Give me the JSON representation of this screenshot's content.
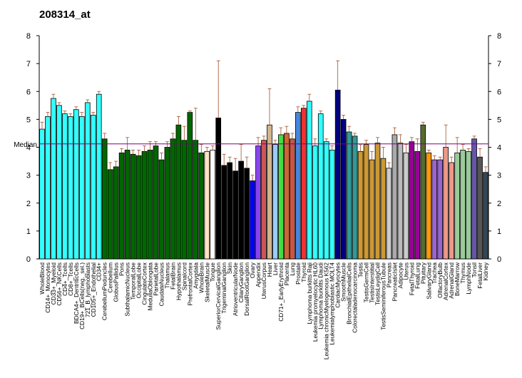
{
  "chart_data": {
    "type": "bar",
    "title": "208314_at",
    "median": 4.12,
    "median_label": "Median",
    "median_color": "#800080",
    "ylim": [
      0,
      8
    ],
    "yticks": [
      0,
      1,
      2,
      3,
      4,
      5,
      6,
      7,
      8
    ],
    "categories": [
      "WholeBlood",
      "CD14+_Monocytes",
      "CD33+_Myeloid",
      "CD56+_NKCells",
      "CD4+_Tcells",
      "CD8+_Tcells",
      "BDCA4+_DentriticCells",
      "CD19+_BCells(neg._sel.)",
      "721_B_lymphoblasts",
      "CD105+_Endothelial",
      "CD34+",
      "CerebellumPeduncles",
      "Cerebellum",
      "GlobusPallidus",
      "Pons",
      "SubthalamicNucleus",
      "TemporalLobe",
      "OccipitalLobe",
      "CingulateCortex",
      "MedullaOblongata",
      "ParietalLobe",
      "CaudateNucleus",
      "Thalamus",
      "FetalBrain",
      "Hypothalamus",
      "Spinalcord",
      "PrefrontalCortex",
      "Amygdala",
      "WholeBrain",
      "SkeletalMuscle",
      "Tongue",
      "SuperiorCervicalGanglion",
      "TrigeminalGanglion",
      "Skin",
      "AtrioventricularNode",
      "CiliaryGanglion",
      "DorsalRootGanglion",
      "Ovary",
      "Appendix",
      "UterusCorpus",
      "Heart",
      "Liver",
      "CD71+_EarlyErythroid",
      "Placenta",
      "Lung",
      "Prostate",
      "Thyroid",
      "Lymphoma burkitts Raji",
      "Leukemia promyelocytic HL60",
      "Lymphoma burkitts Daudi",
      "Leukemia chronicMyelogenous K562",
      "Leukemialymphoblastic MOLT4",
      "CardiacMyocytes",
      "SmoothMuscle",
      "BronchialEpithelialCells",
      "Colorectaladenocarcinoma",
      "Testis",
      "TestisGermCell",
      "TestisInterstitial",
      "TestisLeydigCell",
      "TestisSeminiferousTubule",
      "Pancreas",
      "PancreaticIslet",
      "Adipocyte",
      "Uterus",
      "FetalThyroid",
      "FetalLung",
      "Pituitary",
      "SalivaryGland",
      "Trachea",
      "OlfactoryBulb",
      "AdrenalCortex",
      "AdrenalGland",
      "BoneMarrow",
      "Thymus",
      "LymphNode",
      "Tonsil",
      "FetalLiver",
      "Kidney"
    ],
    "values": [
      4.65,
      5.1,
      5.75,
      5.5,
      5.2,
      5.1,
      5.35,
      5.1,
      5.6,
      5.15,
      5.9,
      4.3,
      3.2,
      3.3,
      3.8,
      3.9,
      3.75,
      3.7,
      3.85,
      3.9,
      4.05,
      3.55,
      4.0,
      4.3,
      4.8,
      4.25,
      5.25,
      4.25,
      3.8,
      3.85,
      3.9,
      5.05,
      3.35,
      3.45,
      3.15,
      3.5,
      3.25,
      2.8,
      4.05,
      4.25,
      4.8,
      4.1,
      4.45,
      4.5,
      4.3,
      5.25,
      5.4,
      5.65,
      4.05,
      5.2,
      4.2,
      3.9,
      6.05,
      5.0,
      4.55,
      4.4,
      3.85,
      4.1,
      3.55,
      4.15,
      3.6,
      3.25,
      4.45,
      4.15,
      3.8,
      4.2,
      3.85,
      4.8,
      3.8,
      3.55,
      3.55,
      4.0,
      3.45,
      3.8,
      3.9,
      3.85,
      4.3,
      3.65,
      3.1
    ],
    "errors": [
      0.25,
      0.15,
      0.15,
      0.1,
      0.1,
      0.1,
      0.1,
      0.15,
      0.1,
      0.1,
      0.1,
      0.2,
      0.25,
      0.2,
      0.15,
      0.45,
      0.15,
      0.2,
      0.2,
      0.3,
      0.15,
      0.25,
      0.2,
      0.2,
      0.3,
      0.5,
      0.05,
      1.15,
      0.3,
      0.15,
      0.15,
      2.05,
      0.4,
      0.2,
      0.45,
      0.6,
      0.4,
      0.2,
      0.3,
      0.15,
      1.3,
      0.15,
      0.25,
      0.25,
      0.2,
      0.2,
      0.1,
      0.25,
      0.25,
      0.1,
      0.1,
      0.15,
      1.05,
      0.15,
      0.2,
      0.1,
      0.25,
      0.15,
      0.3,
      0.2,
      0.4,
      0.2,
      0.25,
      0.3,
      0.3,
      0.15,
      0.45,
      0.1,
      0.1,
      0.15,
      0.1,
      0.8,
      0.2,
      0.55,
      0.2,
      0.1,
      0.1,
      0.3,
      0.2
    ],
    "colors": [
      "#33ffff",
      "#33ffff",
      "#33ffff",
      "#33ffff",
      "#33ffff",
      "#33ffff",
      "#33ffff",
      "#33ffff",
      "#33ffff",
      "#33ffff",
      "#33ffff",
      "#006600",
      "#006600",
      "#006600",
      "#006600",
      "#006600",
      "#006600",
      "#006600",
      "#006600",
      "#006600",
      "#006600",
      "#006600",
      "#006600",
      "#006600",
      "#006600",
      "#006600",
      "#006600",
      "#006600",
      "#006600",
      "#ffe4c4",
      "#ffffff",
      "#000000",
      "#000000",
      "#000000",
      "#000000",
      "#000000",
      "#000000",
      "#0000ff",
      "#8844ee",
      "#cc5555",
      "#d2b48c",
      "#99ccff",
      "#44dd44",
      "#cc6633",
      "#cc5544",
      "#4488dd",
      "#ee3333",
      "#33ffff",
      "#33ffff",
      "#33ffff",
      "#33ffff",
      "#33ffff",
      "#000080",
      "#000080",
      "#339999",
      "#339999",
      "#cc9933",
      "#cc9933",
      "#cc9933",
      "#cc9933",
      "#cc9933",
      "#cccccc",
      "#aaaaaa",
      "#bbbbbb",
      "#cccccc",
      "#990099",
      "#990099",
      "#556b2f",
      "#ff9900",
      "#9966cc",
      "#9966cc",
      "#ee9988",
      "#ee9988",
      "#99cc99",
      "#99cc99",
      "#99cc99",
      "#6655aa",
      "#555555",
      "#334455"
    ],
    "error_color": "#a0522d",
    "grid": false
  }
}
